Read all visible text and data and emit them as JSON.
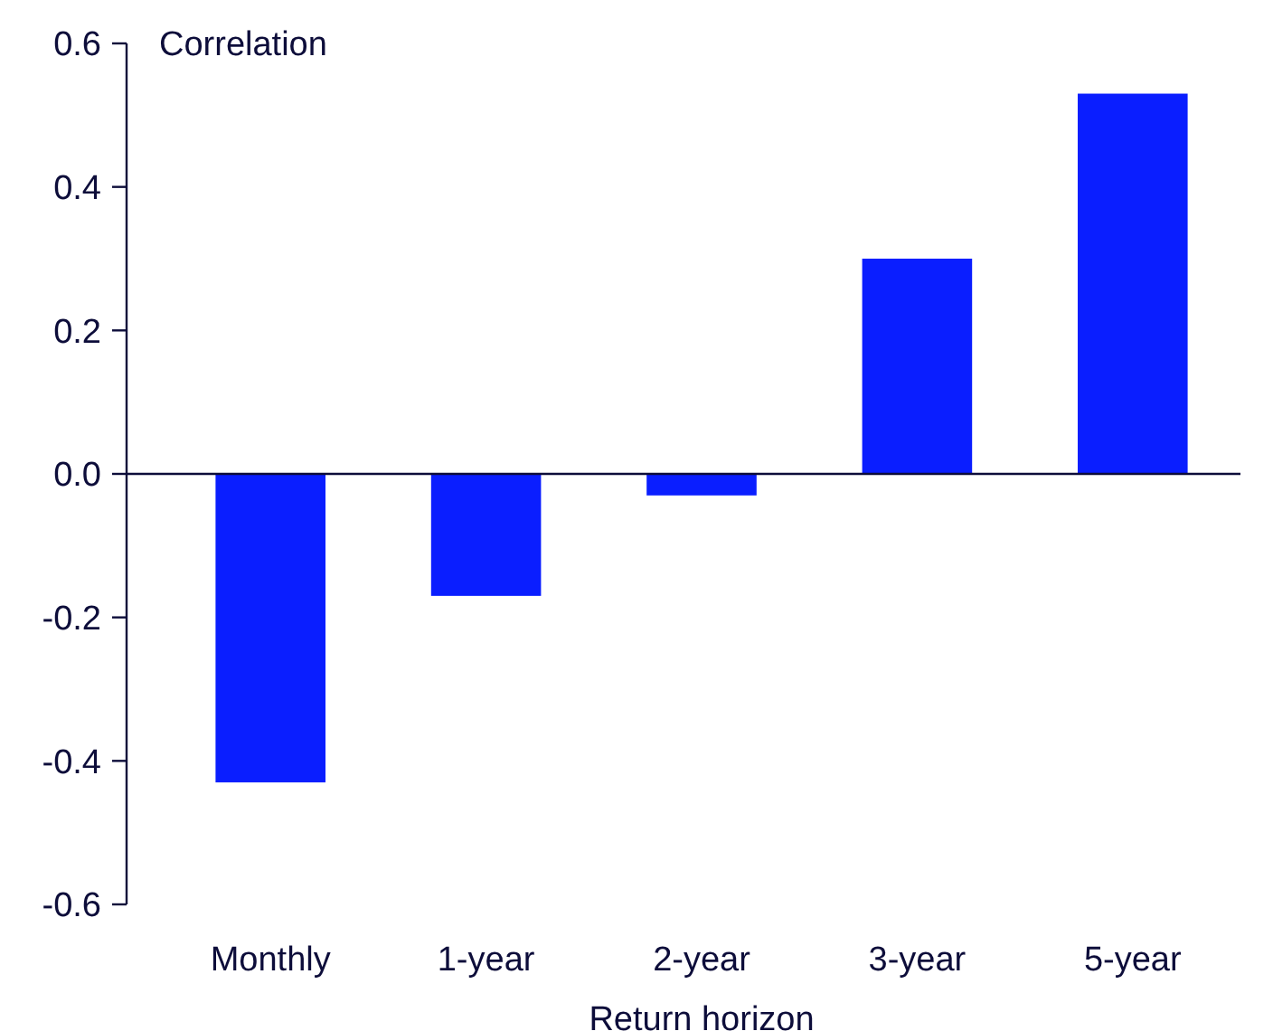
{
  "chart_data": {
    "type": "bar",
    "ylabel": "Correlation",
    "xlabel": "Return horizon",
    "categories": [
      "Monthly",
      "1-year",
      "2-year",
      "3-year",
      "5-year"
    ],
    "values": [
      -0.43,
      -0.17,
      -0.03,
      0.3,
      0.53
    ],
    "color": "#0a1eff",
    "ylim": [
      -0.6,
      0.6
    ],
    "yticks": [
      {
        "value": -0.6,
        "label": "-0.6"
      },
      {
        "value": -0.4,
        "label": "-0.4"
      },
      {
        "value": -0.2,
        "label": "-0.2"
      },
      {
        "value": 0,
        "label": "0.0"
      },
      {
        "value": 0.2,
        "label": "0.2"
      },
      {
        "value": 0.4,
        "label": "0.4"
      },
      {
        "value": 0.6,
        "label": "0.6"
      }
    ],
    "grid": false
  }
}
